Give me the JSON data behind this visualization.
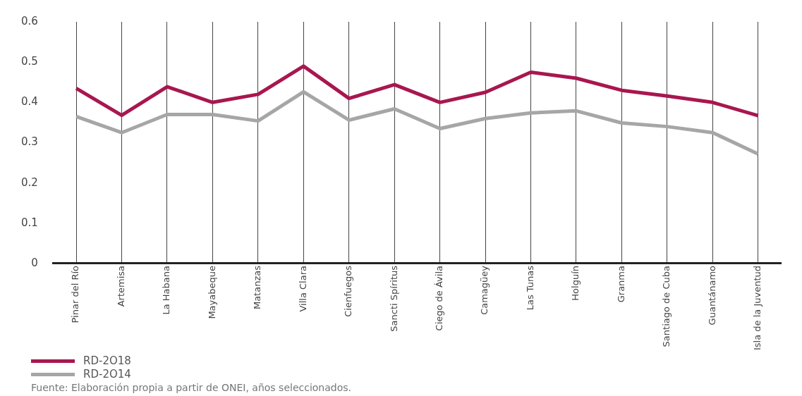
{
  "chart_data": {
    "type": "line",
    "categories": [
      "Pinar del Río",
      "Artemisa",
      "La Habana",
      "Mayabeque",
      "Matanzas",
      "Villa Clara",
      "Cienfuegos",
      "Sancti Spíritus",
      "Ciego de Ávila",
      "Camagüey",
      "Las Tunas",
      "Holguín",
      "Granma",
      "Santiago de Cuba",
      "Guantánamo",
      "Isla de la Juventud"
    ],
    "series": [
      {
        "name": "RD-2O18",
        "color": "#a8174f",
        "values": [
          0.435,
          0.368,
          0.439,
          0.4,
          0.42,
          0.49,
          0.41,
          0.444,
          0.4,
          0.425,
          0.475,
          0.46,
          0.43,
          0.416,
          0.4,
          0.367
        ]
      },
      {
        "name": "RD-2O14",
        "color": "#a6a6a6",
        "values": [
          0.365,
          0.325,
          0.37,
          0.37,
          0.354,
          0.426,
          0.356,
          0.384,
          0.335,
          0.36,
          0.374,
          0.379,
          0.349,
          0.34,
          0.325,
          0.272
        ]
      }
    ],
    "ylim": [
      0,
      0.6
    ],
    "yticks": [
      0,
      0.1,
      0.2,
      0.3,
      0.4,
      0.5,
      0.6
    ],
    "grid": "x",
    "legend": "bottom left",
    "marker": "none",
    "line_style": "solid",
    "annotations": [
      "Fuente: Elaboración propia a partir de ONEI, años seleccionados."
    ]
  }
}
